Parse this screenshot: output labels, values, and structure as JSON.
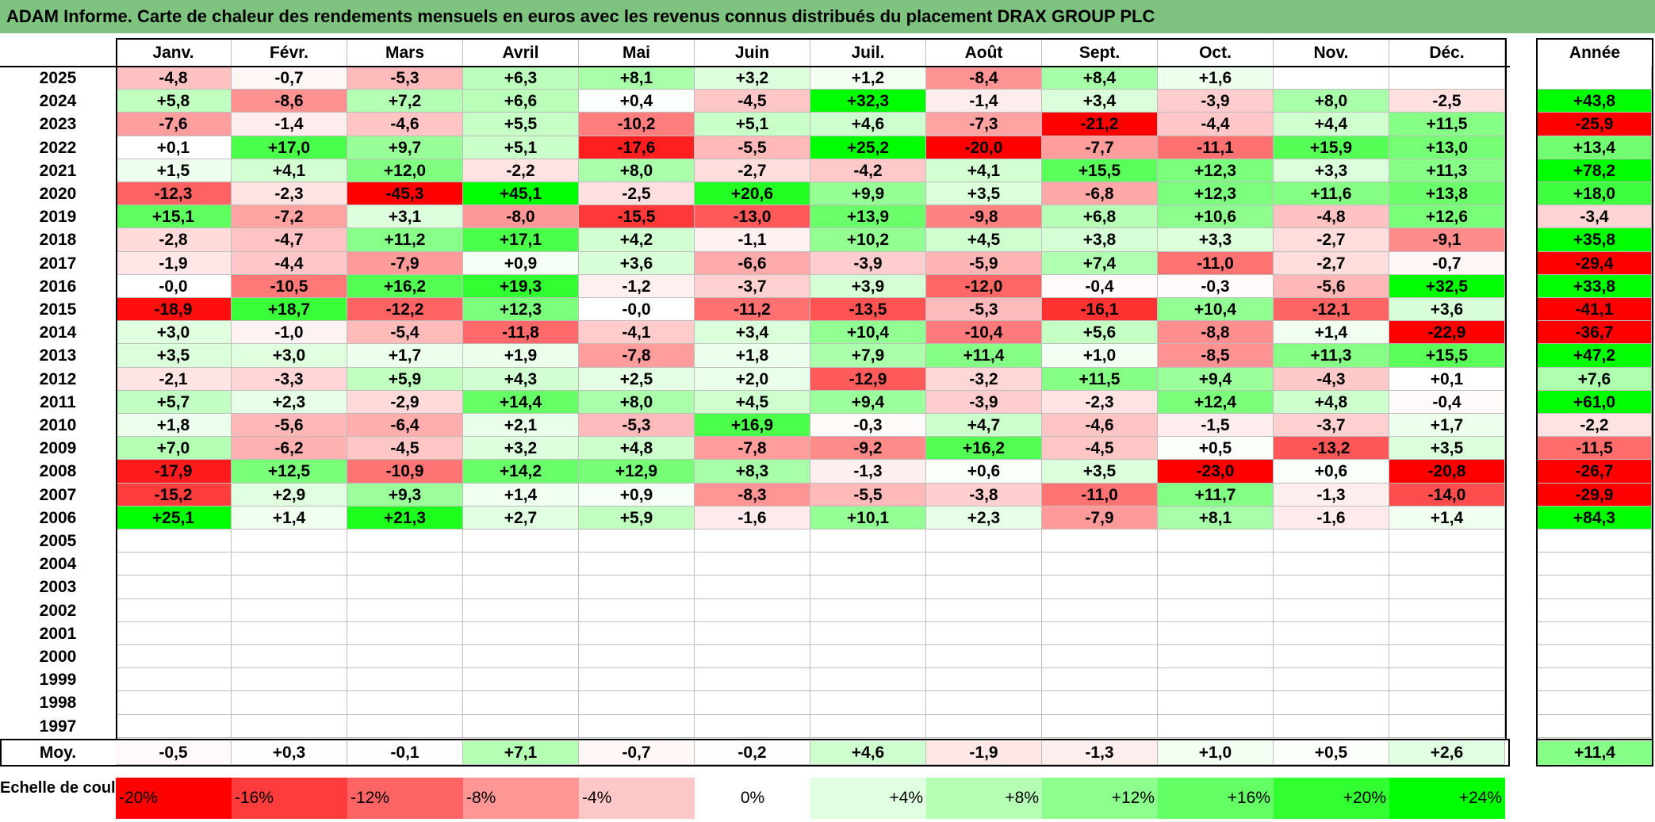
{
  "title": "ADAM Informe. Carte de chaleur des rendements mensuels en euros avec les revenus connus distribués du placement DRAX GROUP PLC",
  "chart_data": {
    "type": "heatmap",
    "months": [
      "Janv.",
      "Févr.",
      "Mars",
      "Avril",
      "Mai",
      "Juin",
      "Juil.",
      "Août",
      "Sept.",
      "Oct.",
      "Nov.",
      "Déc."
    ],
    "year_header": "Année",
    "rows": [
      {
        "year": "2025",
        "values": [
          "-4,8",
          "-0,7",
          "-5,3",
          "+6,3",
          "+8,1",
          "+3,2",
          "+1,2",
          "-8,4",
          "+8,4",
          "+1,6",
          "",
          ""
        ],
        "annual": ""
      },
      {
        "year": "2024",
        "values": [
          "+5,8",
          "-8,6",
          "+7,2",
          "+6,6",
          "+0,4",
          "-4,5",
          "+32,3",
          "-1,4",
          "+3,4",
          "-3,9",
          "+8,0",
          "-2,5"
        ],
        "annual": "+43,8"
      },
      {
        "year": "2023",
        "values": [
          "-7,6",
          "-1,4",
          "-4,6",
          "+5,5",
          "-10,2",
          "+5,1",
          "+4,6",
          "-7,3",
          "-21,2",
          "-4,4",
          "+4,4",
          "+11,5"
        ],
        "annual": "-25,9"
      },
      {
        "year": "2022",
        "values": [
          "+0,1",
          "+17,0",
          "+9,7",
          "+5,1",
          "-17,6",
          "-5,5",
          "+25,2",
          "-20,0",
          "-7,7",
          "-11,1",
          "+15,9",
          "+13,0"
        ],
        "annual": "+13,4"
      },
      {
        "year": "2021",
        "values": [
          "+1,5",
          "+4,1",
          "+12,0",
          "-2,2",
          "+8,0",
          "-2,7",
          "-4,2",
          "+4,1",
          "+15,5",
          "+12,3",
          "+3,3",
          "+11,3"
        ],
        "annual": "+78,2"
      },
      {
        "year": "2020",
        "values": [
          "-12,3",
          "-2,3",
          "-45,3",
          "+45,1",
          "-2,5",
          "+20,6",
          "+9,9",
          "+3,5",
          "-6,8",
          "+12,3",
          "+11,6",
          "+13,8"
        ],
        "annual": "+18,0"
      },
      {
        "year": "2019",
        "values": [
          "+15,1",
          "-7,2",
          "+3,1",
          "-8,0",
          "-15,5",
          "-13,0",
          "+13,9",
          "-9,8",
          "+6,8",
          "+10,6",
          "-4,8",
          "+12,6"
        ],
        "annual": "-3,4"
      },
      {
        "year": "2018",
        "values": [
          "-2,8",
          "-4,7",
          "+11,2",
          "+17,1",
          "+4,2",
          "-1,1",
          "+10,2",
          "+4,5",
          "+3,8",
          "+3,3",
          "-2,7",
          "-9,1"
        ],
        "annual": "+35,8"
      },
      {
        "year": "2017",
        "values": [
          "-1,9",
          "-4,4",
          "-7,9",
          "+0,9",
          "+3,6",
          "-6,6",
          "-3,9",
          "-5,9",
          "+7,4",
          "-11,0",
          "-2,7",
          "-0,7"
        ],
        "annual": "-29,4"
      },
      {
        "year": "2016",
        "values": [
          "-0,0",
          "-10,5",
          "+16,2",
          "+19,3",
          "-1,2",
          "-3,7",
          "+3,9",
          "-12,0",
          "-0,4",
          "-0,3",
          "-5,6",
          "+32,5"
        ],
        "annual": "+33,8"
      },
      {
        "year": "2015",
        "values": [
          "-18,9",
          "+18,7",
          "-12,2",
          "+12,3",
          "-0,0",
          "-11,2",
          "-13,5",
          "-5,3",
          "-16,1",
          "+10,4",
          "-12,1",
          "+3,6"
        ],
        "annual": "-41,1"
      },
      {
        "year": "2014",
        "values": [
          "+3,0",
          "-1,0",
          "-5,4",
          "-11,8",
          "-4,1",
          "+3,4",
          "+10,4",
          "-10,4",
          "+5,6",
          "-8,8",
          "+1,4",
          "-22,9"
        ],
        "annual": "-36,7"
      },
      {
        "year": "2013",
        "values": [
          "+3,5",
          "+3,0",
          "+1,7",
          "+1,9",
          "-7,8",
          "+1,8",
          "+7,9",
          "+11,4",
          "+1,0",
          "-8,5",
          "+11,3",
          "+15,5"
        ],
        "annual": "+47,2"
      },
      {
        "year": "2012",
        "values": [
          "-2,1",
          "-3,3",
          "+5,9",
          "+4,3",
          "+2,5",
          "+2,0",
          "-12,9",
          "-3,2",
          "+11,5",
          "+9,4",
          "-4,3",
          "+0,1"
        ],
        "annual": "+7,6"
      },
      {
        "year": "2011",
        "values": [
          "+5,7",
          "+2,3",
          "-2,9",
          "+14,4",
          "+8,0",
          "+4,5",
          "+9,4",
          "-3,9",
          "-2,3",
          "+12,4",
          "+4,8",
          "-0,4"
        ],
        "annual": "+61,0"
      },
      {
        "year": "2010",
        "values": [
          "+1,8",
          "-5,6",
          "-6,4",
          "+2,1",
          "-5,3",
          "+16,9",
          "-0,3",
          "+4,7",
          "-4,6",
          "-1,5",
          "-3,7",
          "+1,7"
        ],
        "annual": "-2,2"
      },
      {
        "year": "2009",
        "values": [
          "+7,0",
          "-6,2",
          "-4,5",
          "+3,2",
          "+4,8",
          "-7,8",
          "-9,2",
          "+16,2",
          "-4,5",
          "+0,5",
          "-13,2",
          "+3,5"
        ],
        "annual": "-11,5"
      },
      {
        "year": "2008",
        "values": [
          "-17,9",
          "+12,5",
          "-10,9",
          "+14,2",
          "+12,9",
          "+8,3",
          "-1,3",
          "+0,6",
          "+3,5",
          "-23,0",
          "+0,6",
          "-20,8"
        ],
        "annual": "-26,7"
      },
      {
        "year": "2007",
        "values": [
          "-15,2",
          "+2,9",
          "+9,3",
          "+1,4",
          "+0,9",
          "-8,3",
          "-5,5",
          "-3,8",
          "-11,0",
          "+11,7",
          "-1,3",
          "-14,0"
        ],
        "annual": "-29,9"
      },
      {
        "year": "2006",
        "values": [
          "+25,1",
          "+1,4",
          "+21,3",
          "+2,7",
          "+5,9",
          "-1,6",
          "+10,1",
          "+2,3",
          "-7,9",
          "+8,1",
          "-1,6",
          "+1,4"
        ],
        "annual": "+84,3"
      },
      {
        "year": "2005",
        "values": [
          "",
          "",
          "",
          "",
          "",
          "",
          "",
          "",
          "",
          "",
          "",
          ""
        ],
        "annual": ""
      },
      {
        "year": "2004",
        "values": [
          "",
          "",
          "",
          "",
          "",
          "",
          "",
          "",
          "",
          "",
          "",
          ""
        ],
        "annual": ""
      },
      {
        "year": "2003",
        "values": [
          "",
          "",
          "",
          "",
          "",
          "",
          "",
          "",
          "",
          "",
          "",
          ""
        ],
        "annual": ""
      },
      {
        "year": "2002",
        "values": [
          "",
          "",
          "",
          "",
          "",
          "",
          "",
          "",
          "",
          "",
          "",
          ""
        ],
        "annual": ""
      },
      {
        "year": "2001",
        "values": [
          "",
          "",
          "",
          "",
          "",
          "",
          "",
          "",
          "",
          "",
          "",
          ""
        ],
        "annual": ""
      },
      {
        "year": "2000",
        "values": [
          "",
          "",
          "",
          "",
          "",
          "",
          "",
          "",
          "",
          "",
          "",
          ""
        ],
        "annual": ""
      },
      {
        "year": "1999",
        "values": [
          "",
          "",
          "",
          "",
          "",
          "",
          "",
          "",
          "",
          "",
          "",
          ""
        ],
        "annual": ""
      },
      {
        "year": "1998",
        "values": [
          "",
          "",
          "",
          "",
          "",
          "",
          "",
          "",
          "",
          "",
          "",
          ""
        ],
        "annual": ""
      },
      {
        "year": "1997",
        "values": [
          "",
          "",
          "",
          "",
          "",
          "",
          "",
          "",
          "",
          "",
          "",
          ""
        ],
        "annual": ""
      }
    ],
    "average": {
      "label": "Moy.",
      "values": [
        "-0,5",
        "+0,3",
        "-0,1",
        "+7,1",
        "-0,7",
        "-0,2",
        "+4,6",
        "-1,9",
        "-1,3",
        "+1,0",
        "+0,5",
        "+2,6"
      ],
      "annual": "+11,4"
    },
    "scale": {
      "label": "Echelle de couleur",
      "steps": [
        "-20%",
        "-16%",
        "-12%",
        "-8%",
        "-4%",
        "0%",
        "+4%",
        "+8%",
        "+12%",
        "+16%",
        "+20%",
        "+24%"
      ],
      "colors": [
        "#ff0000",
        "#ff3c3c",
        "#ff6464",
        "#ff9696",
        "#ffc8c8",
        "#ffffff",
        "#e0ffe0",
        "#b4ffb4",
        "#8cff8c",
        "#64ff64",
        "#32ff32",
        "#00ff00"
      ]
    }
  }
}
